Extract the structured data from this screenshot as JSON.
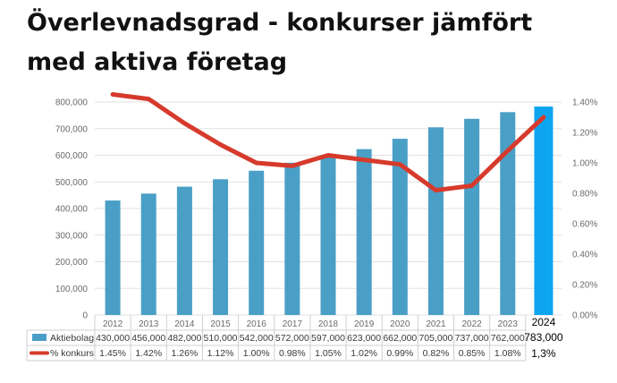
{
  "title": "Överlevnadsgrad - konkurser jämfört med aktiva företag",
  "chart_data": {
    "type": "bar",
    "title": "Överlevnadsgrad - konkurser jämfört med aktiva företag",
    "categories": [
      "2012",
      "2013",
      "2014",
      "2015",
      "2016",
      "2017",
      "2018",
      "2019",
      "2020",
      "2021",
      "2022",
      "2023",
      "2024"
    ],
    "series": [
      {
        "name": "Aktiebolag",
        "type": "bar",
        "axis": "left",
        "values": [
          430000,
          456000,
          482000,
          510000,
          542000,
          572000,
          597000,
          623000,
          662000,
          705000,
          737000,
          762000,
          783000
        ],
        "labels": [
          "430,000",
          "456,000",
          "482,000",
          "510,000",
          "542,000",
          "572,000",
          "597,000",
          "623,000",
          "662,000",
          "705,000",
          "737,000",
          "762,000",
          "783,000"
        ],
        "color": "#4a9fc6",
        "highlight_color": "#0ea5f0"
      },
      {
        "name": "% konkurs",
        "type": "line",
        "axis": "right",
        "values": [
          1.45,
          1.42,
          1.26,
          1.12,
          1.0,
          0.98,
          1.05,
          1.02,
          0.99,
          0.82,
          0.85,
          1.08,
          1.3
        ],
        "labels": [
          "1.45%",
          "1.42%",
          "1.26%",
          "1.12%",
          "1.00%",
          "0.98%",
          "1.05%",
          "1.02%",
          "0.99%",
          "0.82%",
          "0.85%",
          "1.08%",
          "1,3%"
        ],
        "color": "#d63a2c"
      }
    ],
    "left_axis": {
      "range": [
        0,
        800000
      ],
      "ticks": [
        0,
        100000,
        200000,
        300000,
        400000,
        500000,
        600000,
        700000,
        800000
      ],
      "tick_labels": [
        "0",
        "100,000",
        "200,000",
        "300,000",
        "400,000",
        "500,000",
        "600,000",
        "700,000",
        "800,000"
      ]
    },
    "right_axis": {
      "range": [
        0,
        1.4
      ],
      "ticks": [
        0,
        0.2,
        0.4,
        0.6,
        0.8,
        1.0,
        1.2,
        1.4
      ],
      "tick_labels": [
        "0.00%",
        "0.20%",
        "0.40%",
        "0.60%",
        "0.80%",
        "1.00%",
        "1.20%",
        "1.40%"
      ]
    },
    "grid": true,
    "legend": "data-table-below",
    "highlight_category": "2024"
  }
}
